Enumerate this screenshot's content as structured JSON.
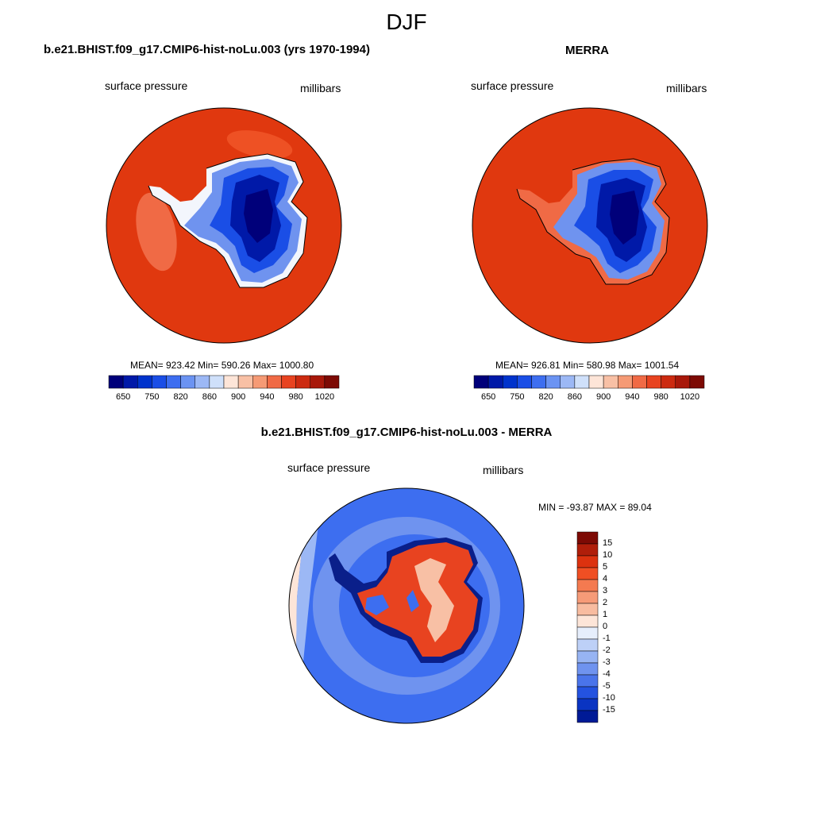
{
  "figure": {
    "season": "DJF"
  },
  "panels": [
    {
      "title": "b.e21.BHIST.f09_g17.CMIP6-hist-noLu.003 (yrs 1970-1994)",
      "variable": "surface pressure",
      "units": "millibars",
      "stats": "MEAN= 923.42  Min= 590.26  Max= 1000.80"
    },
    {
      "title": "MERRA",
      "variable": "surface pressure",
      "units": "millibars",
      "stats": "MEAN= 926.81  Min= 580.98  Max= 1001.54"
    },
    {
      "title": "b.e21.BHIST.f09_g17.CMIP6-hist-noLu.003 - MERRA",
      "variable": "surface pressure",
      "units": "millibars",
      "stats": "MIN = -93.87 MAX =  89.04"
    }
  ],
  "colorbar_abs": {
    "tick_labels": [
      "650",
      "750",
      "820",
      "860",
      "900",
      "940",
      "980",
      "1020"
    ],
    "colors": [
      "#00007a",
      "#0019a8",
      "#0033cc",
      "#1a4ee6",
      "#3d6ef0",
      "#6b93f2",
      "#9cb8f5",
      "#cfe0fa",
      "#fde5d8",
      "#f8c0a5",
      "#f59a75",
      "#f06a45",
      "#e84320",
      "#cc2a10",
      "#a8180a",
      "#7d0a04"
    ]
  },
  "colorbar_diff": {
    "tick_labels": [
      "15",
      "10",
      "5",
      "4",
      "3",
      "2",
      "1",
      "0",
      "-1",
      "-2",
      "-3",
      "-4",
      "-5",
      "-10",
      "-15"
    ],
    "colors": [
      "#7d0a04",
      "#b01e0a",
      "#dc320f",
      "#f04f23",
      "#f47a50",
      "#f69b78",
      "#f8bca0",
      "#fde5d8",
      "#e6eefc",
      "#bdd0f7",
      "#97b4f3",
      "#6f93ef",
      "#4a74ea",
      "#2453e0",
      "#0a34c2",
      "#001a96"
    ]
  },
  "map_colors": {
    "ocean_high": "#e0380f",
    "ocean_mid": "#ee5124",
    "ocean_alt": "#f06a45",
    "coast_white": "#f3f6fc",
    "ice_light": "#6f93ef",
    "ice_mid": "#1a4ee6",
    "ice_dark": "#0019a8",
    "ice_core": "#00007a",
    "diff_ocean": "#3d6ef0",
    "diff_ocean_light": "#6f93ef",
    "diff_ocean_pale": "#9cb8f5",
    "diff_land_red": "#e84320",
    "diff_land_light": "#f8c0a5",
    "diff_coast_dark": "#0a1f8a",
    "diff_edge_pale": "#fde5d8"
  }
}
